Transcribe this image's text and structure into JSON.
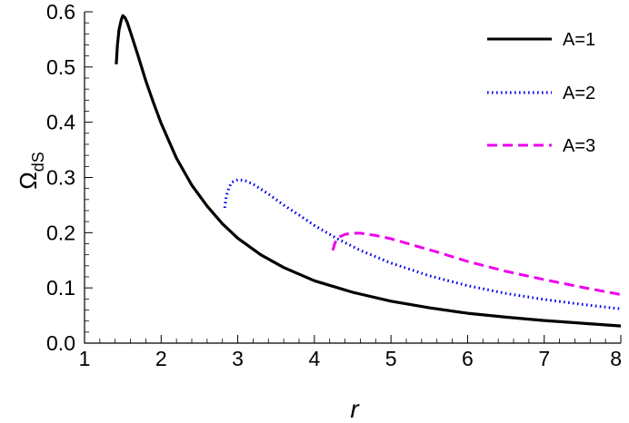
{
  "chart_data": {
    "type": "line",
    "xlabel": "r",
    "ylabel": {
      "main": "Ω",
      "sub": "dS"
    },
    "xlim": [
      1,
      8
    ],
    "ylim": [
      0,
      0.6
    ],
    "xticks": [
      "1",
      "2",
      "3",
      "4",
      "5",
      "6",
      "7",
      "8"
    ],
    "yticks": [
      "0.0",
      "0.1",
      "0.2",
      "0.3",
      "0.4",
      "0.5",
      "0.6"
    ],
    "grid": false,
    "legend_position": "top-right",
    "series": [
      {
        "name": "A=1",
        "color": "#000000",
        "style": "solid",
        "points": [
          [
            1.414,
            0.505
          ],
          [
            1.43,
            0.54
          ],
          [
            1.45,
            0.567
          ],
          [
            1.48,
            0.586
          ],
          [
            1.5,
            0.593
          ],
          [
            1.53,
            0.589
          ],
          [
            1.56,
            0.58
          ],
          [
            1.6,
            0.563
          ],
          [
            1.7,
            0.52
          ],
          [
            1.8,
            0.475
          ],
          [
            1.9,
            0.435
          ],
          [
            2.0,
            0.398
          ],
          [
            2.2,
            0.335
          ],
          [
            2.4,
            0.286
          ],
          [
            2.6,
            0.248
          ],
          [
            2.8,
            0.216
          ],
          [
            3.0,
            0.19
          ],
          [
            3.3,
            0.16
          ],
          [
            3.6,
            0.137
          ],
          [
            4.0,
            0.113
          ],
          [
            4.5,
            0.092
          ],
          [
            5.0,
            0.076
          ],
          [
            5.5,
            0.064
          ],
          [
            6.0,
            0.054
          ],
          [
            6.5,
            0.047
          ],
          [
            7.0,
            0.041
          ],
          [
            7.5,
            0.036
          ],
          [
            8.0,
            0.031
          ]
        ]
      },
      {
        "name": "A=2",
        "color": "#0000ee",
        "style": "dotted",
        "points": [
          [
            2.83,
            0.245
          ],
          [
            2.85,
            0.265
          ],
          [
            2.88,
            0.28
          ],
          [
            2.92,
            0.291
          ],
          [
            3.0,
            0.296
          ],
          [
            3.1,
            0.294
          ],
          [
            3.2,
            0.288
          ],
          [
            3.4,
            0.27
          ],
          [
            3.6,
            0.25
          ],
          [
            3.8,
            0.232
          ],
          [
            4.0,
            0.213
          ],
          [
            4.3,
            0.189
          ],
          [
            4.6,
            0.168
          ],
          [
            5.0,
            0.145
          ],
          [
            5.5,
            0.122
          ],
          [
            6.0,
            0.104
          ],
          [
            6.5,
            0.09
          ],
          [
            7.0,
            0.079
          ],
          [
            7.5,
            0.07
          ],
          [
            8.0,
            0.062
          ]
        ]
      },
      {
        "name": "A=3",
        "color": "#ee00ee",
        "style": "dashed",
        "points": [
          [
            4.24,
            0.168
          ],
          [
            4.27,
            0.182
          ],
          [
            4.32,
            0.192
          ],
          [
            4.4,
            0.197
          ],
          [
            4.5,
            0.199
          ],
          [
            4.6,
            0.199
          ],
          [
            4.8,
            0.195
          ],
          [
            5.0,
            0.189
          ],
          [
            5.3,
            0.177
          ],
          [
            5.6,
            0.165
          ],
          [
            6.0,
            0.148
          ],
          [
            6.5,
            0.13
          ],
          [
            7.0,
            0.115
          ],
          [
            7.5,
            0.101
          ],
          [
            8.0,
            0.088
          ]
        ]
      }
    ]
  }
}
